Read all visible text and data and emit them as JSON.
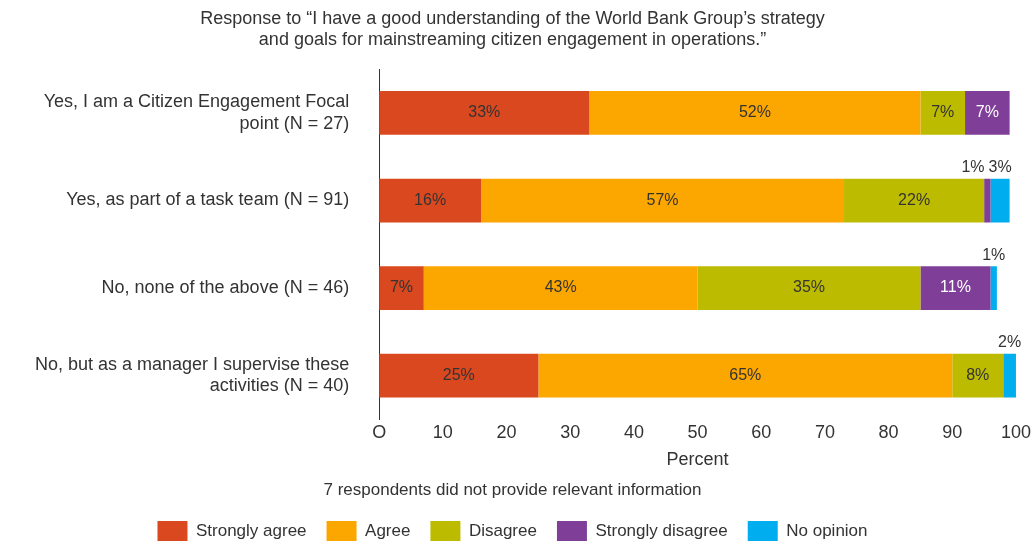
{
  "chart_data": {
    "type": "bar",
    "orientation": "horizontal",
    "stacked": true,
    "title": "Response to “I have a good understanding of the World Bank Group’s strategy and goals for mainstreaming citizen engagement in operations.”",
    "xlabel": "Percent",
    "annotations": [
      "7 respondents did not provide relevant information"
    ],
    "categories": [
      "Yes, I am a Citizen Engagement Focal point (N = 27)",
      "Yes, as part of a task team (N = 91)",
      "No, none of the above (N = 46)",
      "No, but as a manager I supervise these activities (N = 40)"
    ],
    "series": [
      {
        "name": "Strongly agree",
        "color": "#d9481f",
        "values": [
          33,
          16,
          7,
          25
        ],
        "value_labels": [
          "33%",
          "16%",
          "7%",
          "25%"
        ]
      },
      {
        "name": "Agree",
        "color": "#fca600",
        "values": [
          52,
          57,
          43,
          65
        ],
        "value_labels": [
          "52%",
          "57%",
          "43%",
          "65%"
        ]
      },
      {
        "name": "Disagree",
        "color": "#bdbb00",
        "values": [
          7,
          22,
          35,
          8
        ],
        "value_labels": [
          "7%",
          "22%",
          "35%",
          "8%"
        ]
      },
      {
        "name": "Strongly disagree",
        "color": "#7f3f98",
        "values": [
          7,
          1,
          11,
          null
        ],
        "value_labels": [
          "7%",
          "1%",
          "11%",
          null
        ]
      },
      {
        "name": "No opinion",
        "color": "#00aeef",
        "values": [
          null,
          3,
          1,
          2
        ],
        "value_labels": [
          null,
          "3%",
          "1%",
          "2%"
        ]
      }
    ],
    "xlim": [
      0,
      100
    ],
    "xticks": [
      {
        "value": 0,
        "label": "O"
      },
      10,
      20,
      30,
      40,
      50,
      60,
      70,
      80,
      90,
      100
    ],
    "grid": false,
    "legend": "bottom"
  }
}
